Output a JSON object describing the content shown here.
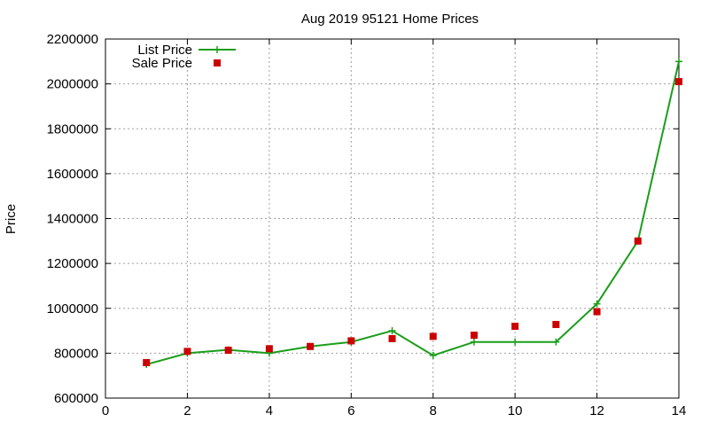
{
  "chart_data": {
    "type": "line",
    "title": "Aug 2019 95121 Home Prices",
    "xlabel": "",
    "ylabel": "Price",
    "xlim": [
      0,
      14
    ],
    "ylim": [
      600000,
      2200000
    ],
    "x_ticks": [
      0,
      2,
      4,
      6,
      8,
      10,
      12,
      14
    ],
    "y_ticks": [
      600000,
      800000,
      1000000,
      1200000,
      1400000,
      1600000,
      1800000,
      2000000,
      2200000
    ],
    "grid": true,
    "legend_position": "top-left",
    "series": [
      {
        "name": "List Price",
        "style": "line-with-plus-markers",
        "color": "#1a9e1a",
        "x": [
          1,
          2,
          3,
          4,
          5,
          6,
          7,
          8,
          9,
          10,
          11,
          12,
          13,
          14
        ],
        "values": [
          750000,
          800000,
          815000,
          800000,
          830000,
          850000,
          900000,
          790000,
          850000,
          850000,
          850000,
          1020000,
          1300000,
          2100000
        ]
      },
      {
        "name": "Sale Price",
        "style": "square-markers",
        "color": "#cc0000",
        "x": [
          1,
          2,
          3,
          4,
          5,
          6,
          7,
          8,
          9,
          10,
          11,
          12,
          13,
          14
        ],
        "values": [
          758000,
          808000,
          813000,
          820000,
          830000,
          855000,
          865000,
          875000,
          880000,
          920000,
          928000,
          985000,
          1300000,
          2010000
        ]
      }
    ]
  }
}
